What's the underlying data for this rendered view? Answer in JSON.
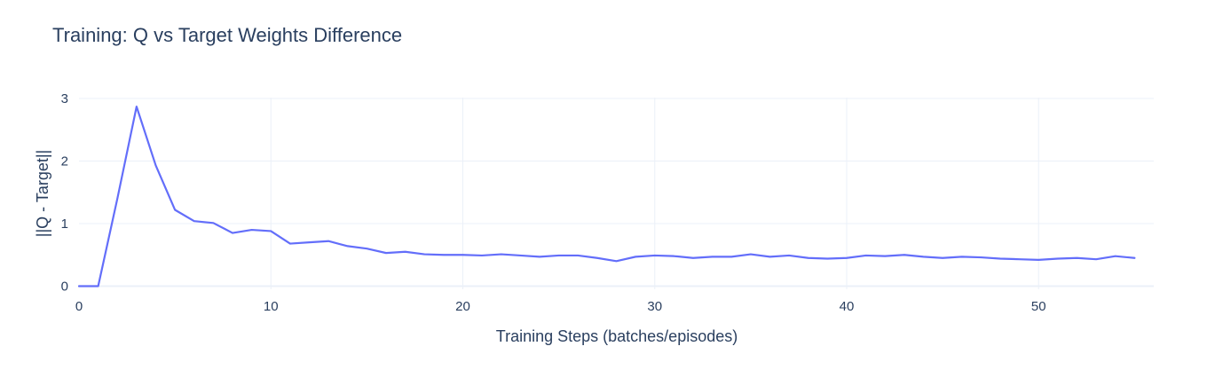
{
  "chart_data": {
    "type": "line",
    "title": "Training: Q vs Target Weights Difference",
    "xlabel": "Training Steps (batches/episodes)",
    "ylabel": "||Q - Target||",
    "xlim": [
      0,
      56
    ],
    "ylim": [
      -0.05,
      3.0
    ],
    "x_ticks": [
      0,
      10,
      20,
      30,
      40,
      50
    ],
    "y_ticks": [
      0,
      1,
      2,
      3
    ],
    "grid": true,
    "legend": "none",
    "series": [
      {
        "color": "#636efa",
        "x": [
          0,
          1,
          2,
          3,
          4,
          5,
          6,
          7,
          8,
          9,
          10,
          11,
          12,
          13,
          14,
          15,
          16,
          17,
          18,
          19,
          20,
          21,
          22,
          23,
          24,
          25,
          26,
          27,
          28,
          29,
          30,
          31,
          32,
          33,
          34,
          35,
          36,
          37,
          38,
          39,
          40,
          41,
          42,
          43,
          44,
          45,
          46,
          47,
          48,
          49,
          50,
          51,
          52,
          53,
          54,
          55
        ],
        "y": [
          0,
          0,
          1.4,
          2.87,
          1.93,
          1.22,
          1.04,
          1.01,
          0.85,
          0.9,
          0.88,
          0.68,
          0.7,
          0.72,
          0.64,
          0.6,
          0.53,
          0.55,
          0.51,
          0.5,
          0.5,
          0.49,
          0.51,
          0.49,
          0.47,
          0.49,
          0.49,
          0.45,
          0.4,
          0.47,
          0.49,
          0.48,
          0.45,
          0.47,
          0.47,
          0.51,
          0.47,
          0.49,
          0.45,
          0.44,
          0.45,
          0.49,
          0.48,
          0.5,
          0.47,
          0.45,
          0.47,
          0.46,
          0.44,
          0.43,
          0.42,
          0.44,
          0.45,
          0.43,
          0.48,
          0.45
        ]
      }
    ]
  }
}
